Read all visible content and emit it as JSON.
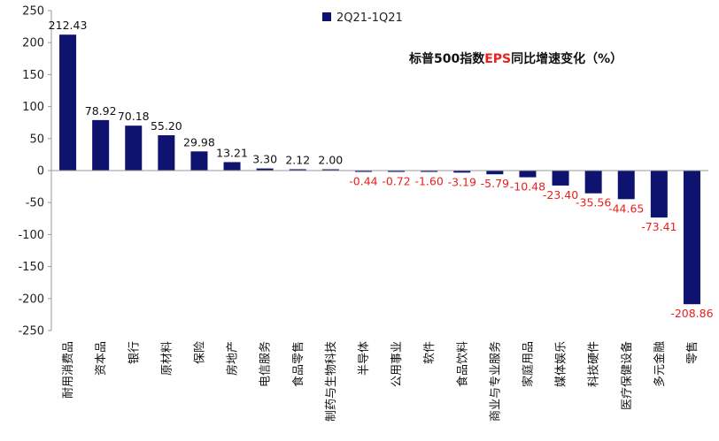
{
  "chart_data": {
    "type": "bar",
    "title_parts": [
      {
        "text": "标普500指数",
        "color": "#111111"
      },
      {
        "text": "EPS",
        "color": "#e8201f"
      },
      {
        "text": "同比增速变化（%）",
        "color": "#111111"
      }
    ],
    "categories": [
      "耐用消费品",
      "资本品",
      "银行",
      "原材料",
      "保险",
      "房地产",
      "电信服务",
      "食品零售",
      "制药与生物科技",
      "半导体",
      "公用事业",
      "软件",
      "食品饮料",
      "商业与专业服务",
      "家庭用品",
      "媒体娱乐",
      "科技硬件",
      "医疗保健设备",
      "多元金融",
      "零售"
    ],
    "series": [
      {
        "name": "2Q21-1Q21",
        "values": [
          212.43,
          78.92,
          70.18,
          55.2,
          29.98,
          13.21,
          3.3,
          2.12,
          2.0,
          -0.44,
          -0.72,
          -1.6,
          -3.19,
          -5.79,
          -10.48,
          -23.4,
          -35.56,
          -44.65,
          -73.41,
          -208.86
        ],
        "labels": [
          "212.43",
          "78.92",
          "70.18",
          "55.20",
          "29.98",
          "13.21",
          "3.30",
          "2.12",
          "2.00",
          "-0.44",
          "-0.72",
          "-1.60",
          "-3.19",
          "-5.79",
          "-10.48",
          "-23.40",
          "-35.56",
          "-44.65",
          "-73.41",
          "-208.86"
        ]
      }
    ],
    "ylim": [
      -250,
      250
    ],
    "yticks": [
      -250,
      -200,
      -150,
      -100,
      -50,
      0,
      50,
      100,
      150,
      200,
      250
    ],
    "legend_position": "top-center",
    "grid": false,
    "colors": {
      "bar": "#0f1370",
      "positive_label": "#111111",
      "negative_label": "#e8201f",
      "axis": "#999999"
    }
  }
}
